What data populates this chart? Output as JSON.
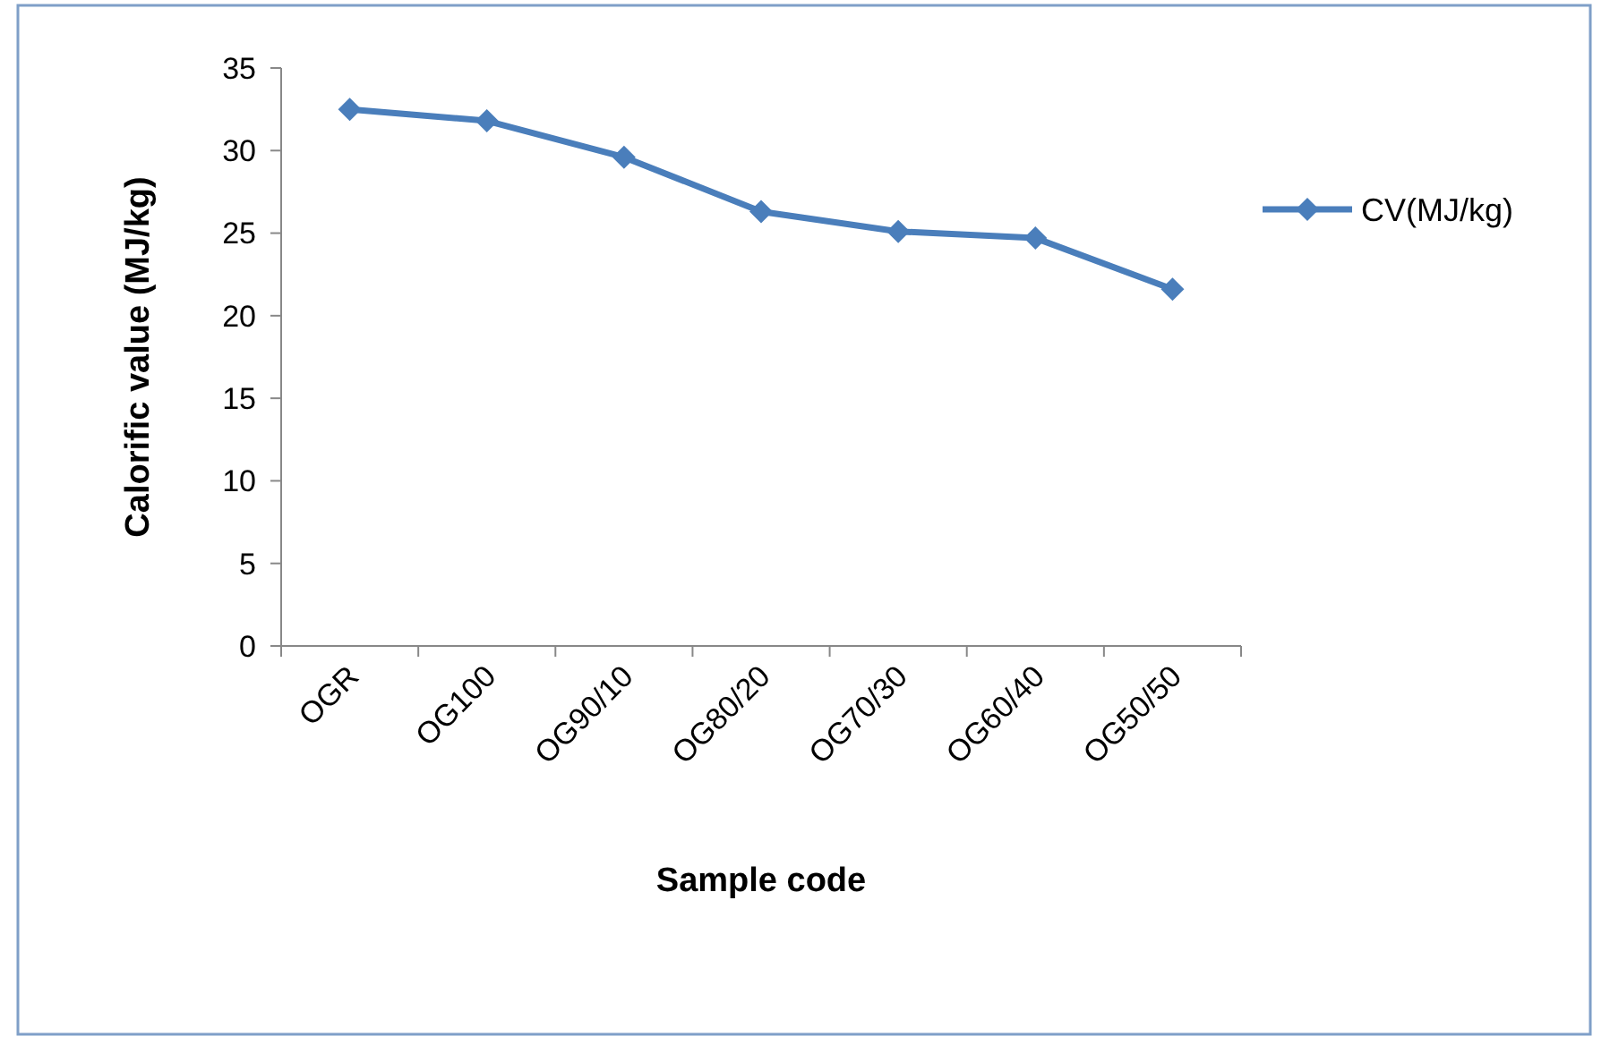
{
  "chart_data": {
    "type": "line",
    "xlabel": "Sample code",
    "ylabel": "Calorific value (MJ/kg)",
    "categories": [
      "OGR",
      "OG100",
      "OG90/10",
      "OG80/20",
      "OG70/30",
      "OG60/40",
      "OG50/50"
    ],
    "series": [
      {
        "name": "CV(MJ/kg)",
        "color": "#4a7ebb",
        "values": [
          32.5,
          31.8,
          29.6,
          26.3,
          25.1,
          24.7,
          21.6
        ]
      }
    ],
    "ylim": [
      0,
      35
    ],
    "yticks": [
      0,
      5,
      10,
      15,
      20,
      25,
      30,
      35
    ],
    "grid": false,
    "legend": "right",
    "marker": "diamond",
    "line_style": "solid"
  }
}
